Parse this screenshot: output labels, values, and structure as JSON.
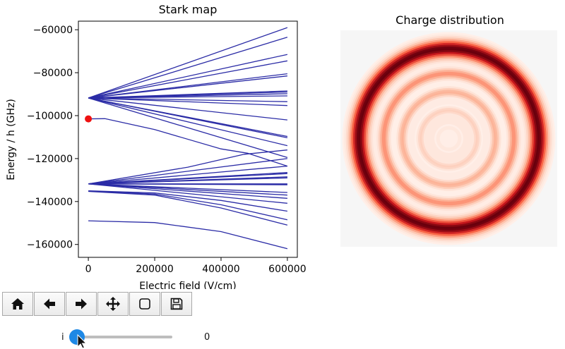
{
  "chart_data": [
    {
      "type": "line",
      "title": "Stark map",
      "xlabel": "Electric field (V/cm)",
      "ylabel": "Energy / h (GHz)",
      "xlim": [
        -30000,
        630000
      ],
      "ylim": [
        -166000,
        -56000
      ],
      "xticks": [
        0,
        200000,
        400000,
        600000
      ],
      "xtick_labels": [
        "0",
        "200000",
        "400000",
        "600000"
      ],
      "yticks": [
        -160000,
        -140000,
        -120000,
        -100000,
        -80000,
        -60000
      ],
      "ytick_labels": [
        "−160000",
        "−140000",
        "−120000",
        "−100000",
        "−80000",
        "−60000"
      ],
      "line_color": "#2b2ca6",
      "marker_color": "#ee1111",
      "marker": {
        "x": 0,
        "y": -101500
      },
      "series": [
        {
          "x": [
            0,
            600000
          ],
          "y": [
            -91800,
            -59000
          ]
        },
        {
          "x": [
            0,
            600000
          ],
          "y": [
            -91800,
            -63500
          ]
        },
        {
          "x": [
            0,
            600000
          ],
          "y": [
            -91800,
            -71500
          ]
        },
        {
          "x": [
            0,
            600000
          ],
          "y": [
            -91800,
            -74500
          ]
        },
        {
          "x": [
            0,
            600000
          ],
          "y": [
            -91800,
            -80500
          ]
        },
        {
          "x": [
            0,
            600000
          ],
          "y": [
            -91800,
            -81500
          ]
        },
        {
          "x": [
            0,
            600000
          ],
          "y": [
            -91800,
            -88500
          ]
        },
        {
          "x": [
            0,
            600000
          ],
          "y": [
            -91800,
            -89000
          ]
        },
        {
          "x": [
            0,
            600000
          ],
          "y": [
            -91800,
            -89800
          ]
        },
        {
          "x": [
            0,
            600000
          ],
          "y": [
            -91800,
            -90800
          ]
        },
        {
          "x": [
            0,
            600000
          ],
          "y": [
            -91800,
            -93500
          ]
        },
        {
          "x": [
            0,
            600000
          ],
          "y": [
            -91800,
            -95300
          ]
        },
        {
          "x": [
            0,
            600000
          ],
          "y": [
            -91800,
            -102000
          ]
        },
        {
          "x": [
            0,
            600000
          ],
          "y": [
            -91800,
            -109700
          ]
        },
        {
          "x": [
            0,
            600000
          ],
          "y": [
            -91800,
            -110300
          ]
        },
        {
          "x": [
            0,
            600000
          ],
          "y": [
            -91800,
            -114000
          ]
        },
        {
          "x": [
            0,
            600000
          ],
          "y": [
            -91800,
            -119500
          ]
        },
        {
          "x": [
            0,
            50000,
            200000,
            400000,
            480000,
            600000
          ],
          "y": [
            -101500,
            -101400,
            -106500,
            -115500,
            -117500,
            -123500
          ]
        },
        {
          "x": [
            0,
            300000,
            470000,
            600000
          ],
          "y": [
            -131800,
            -124000,
            -118000,
            -116000
          ]
        },
        {
          "x": [
            0,
            600000
          ],
          "y": [
            -131800,
            -120000
          ]
        },
        {
          "x": [
            0,
            600000
          ],
          "y": [
            -131800,
            -123500
          ]
        },
        {
          "x": [
            0,
            600000
          ],
          "y": [
            -131800,
            -126500
          ]
        },
        {
          "x": [
            0,
            600000
          ],
          "y": [
            -131800,
            -127000
          ]
        },
        {
          "x": [
            0,
            600000
          ],
          "y": [
            -131800,
            -128500
          ]
        },
        {
          "x": [
            0,
            600000
          ],
          "y": [
            -131800,
            -129000
          ]
        },
        {
          "x": [
            0,
            600000
          ],
          "y": [
            -131800,
            -131800
          ]
        },
        {
          "x": [
            0,
            600000
          ],
          "y": [
            -131800,
            -132200
          ]
        },
        {
          "x": [
            0,
            600000
          ],
          "y": [
            -131800,
            -135800
          ]
        },
        {
          "x": [
            0,
            600000
          ],
          "y": [
            -131800,
            -137000
          ]
        },
        {
          "x": [
            0,
            600000
          ],
          "y": [
            -131800,
            -138500
          ]
        },
        {
          "x": [
            0,
            600000
          ],
          "y": [
            -131800,
            -140800
          ]
        },
        {
          "x": [
            0,
            200000,
            400000,
            600000
          ],
          "y": [
            -135000,
            -136000,
            -139500,
            -144500
          ]
        },
        {
          "x": [
            0,
            200000,
            400000,
            600000
          ],
          "y": [
            -135200,
            -136500,
            -141500,
            -148500
          ]
        },
        {
          "x": [
            0,
            200000,
            400000,
            600000
          ],
          "y": [
            -135300,
            -137000,
            -143000,
            -151000
          ]
        },
        {
          "x": [
            0,
            200000,
            400000,
            600000
          ],
          "y": [
            -149000,
            -149800,
            -154000,
            -162000
          ]
        }
      ]
    },
    {
      "type": "heatmap",
      "title": "Charge distribution",
      "colormap": "Reds",
      "rings": [
        {
          "r": 0.83,
          "w": 0.075,
          "v": 1.0
        },
        {
          "r": 0.6,
          "w": 0.045,
          "v": 0.38
        },
        {
          "r": 0.43,
          "w": 0.04,
          "v": 0.28
        },
        {
          "r": 0.26,
          "w": 0.035,
          "v": 0.16
        },
        {
          "r": 0.1,
          "w": 0.03,
          "v": 0.06
        }
      ]
    }
  ],
  "toolbar": {
    "buttons": [
      {
        "name": "home-button",
        "icon": "home-icon"
      },
      {
        "name": "back-button",
        "icon": "arrow-left-icon"
      },
      {
        "name": "forward-button",
        "icon": "arrow-right-icon"
      },
      {
        "name": "pan-button",
        "icon": "move-icon"
      },
      {
        "name": "zoom-button",
        "icon": "zoom-rect-icon"
      },
      {
        "name": "save-button",
        "icon": "save-icon"
      }
    ]
  },
  "slider": {
    "label": "i",
    "value": "0",
    "position": 0,
    "knob_color": "#1e88e5",
    "track_color": "#bdbdbd"
  }
}
